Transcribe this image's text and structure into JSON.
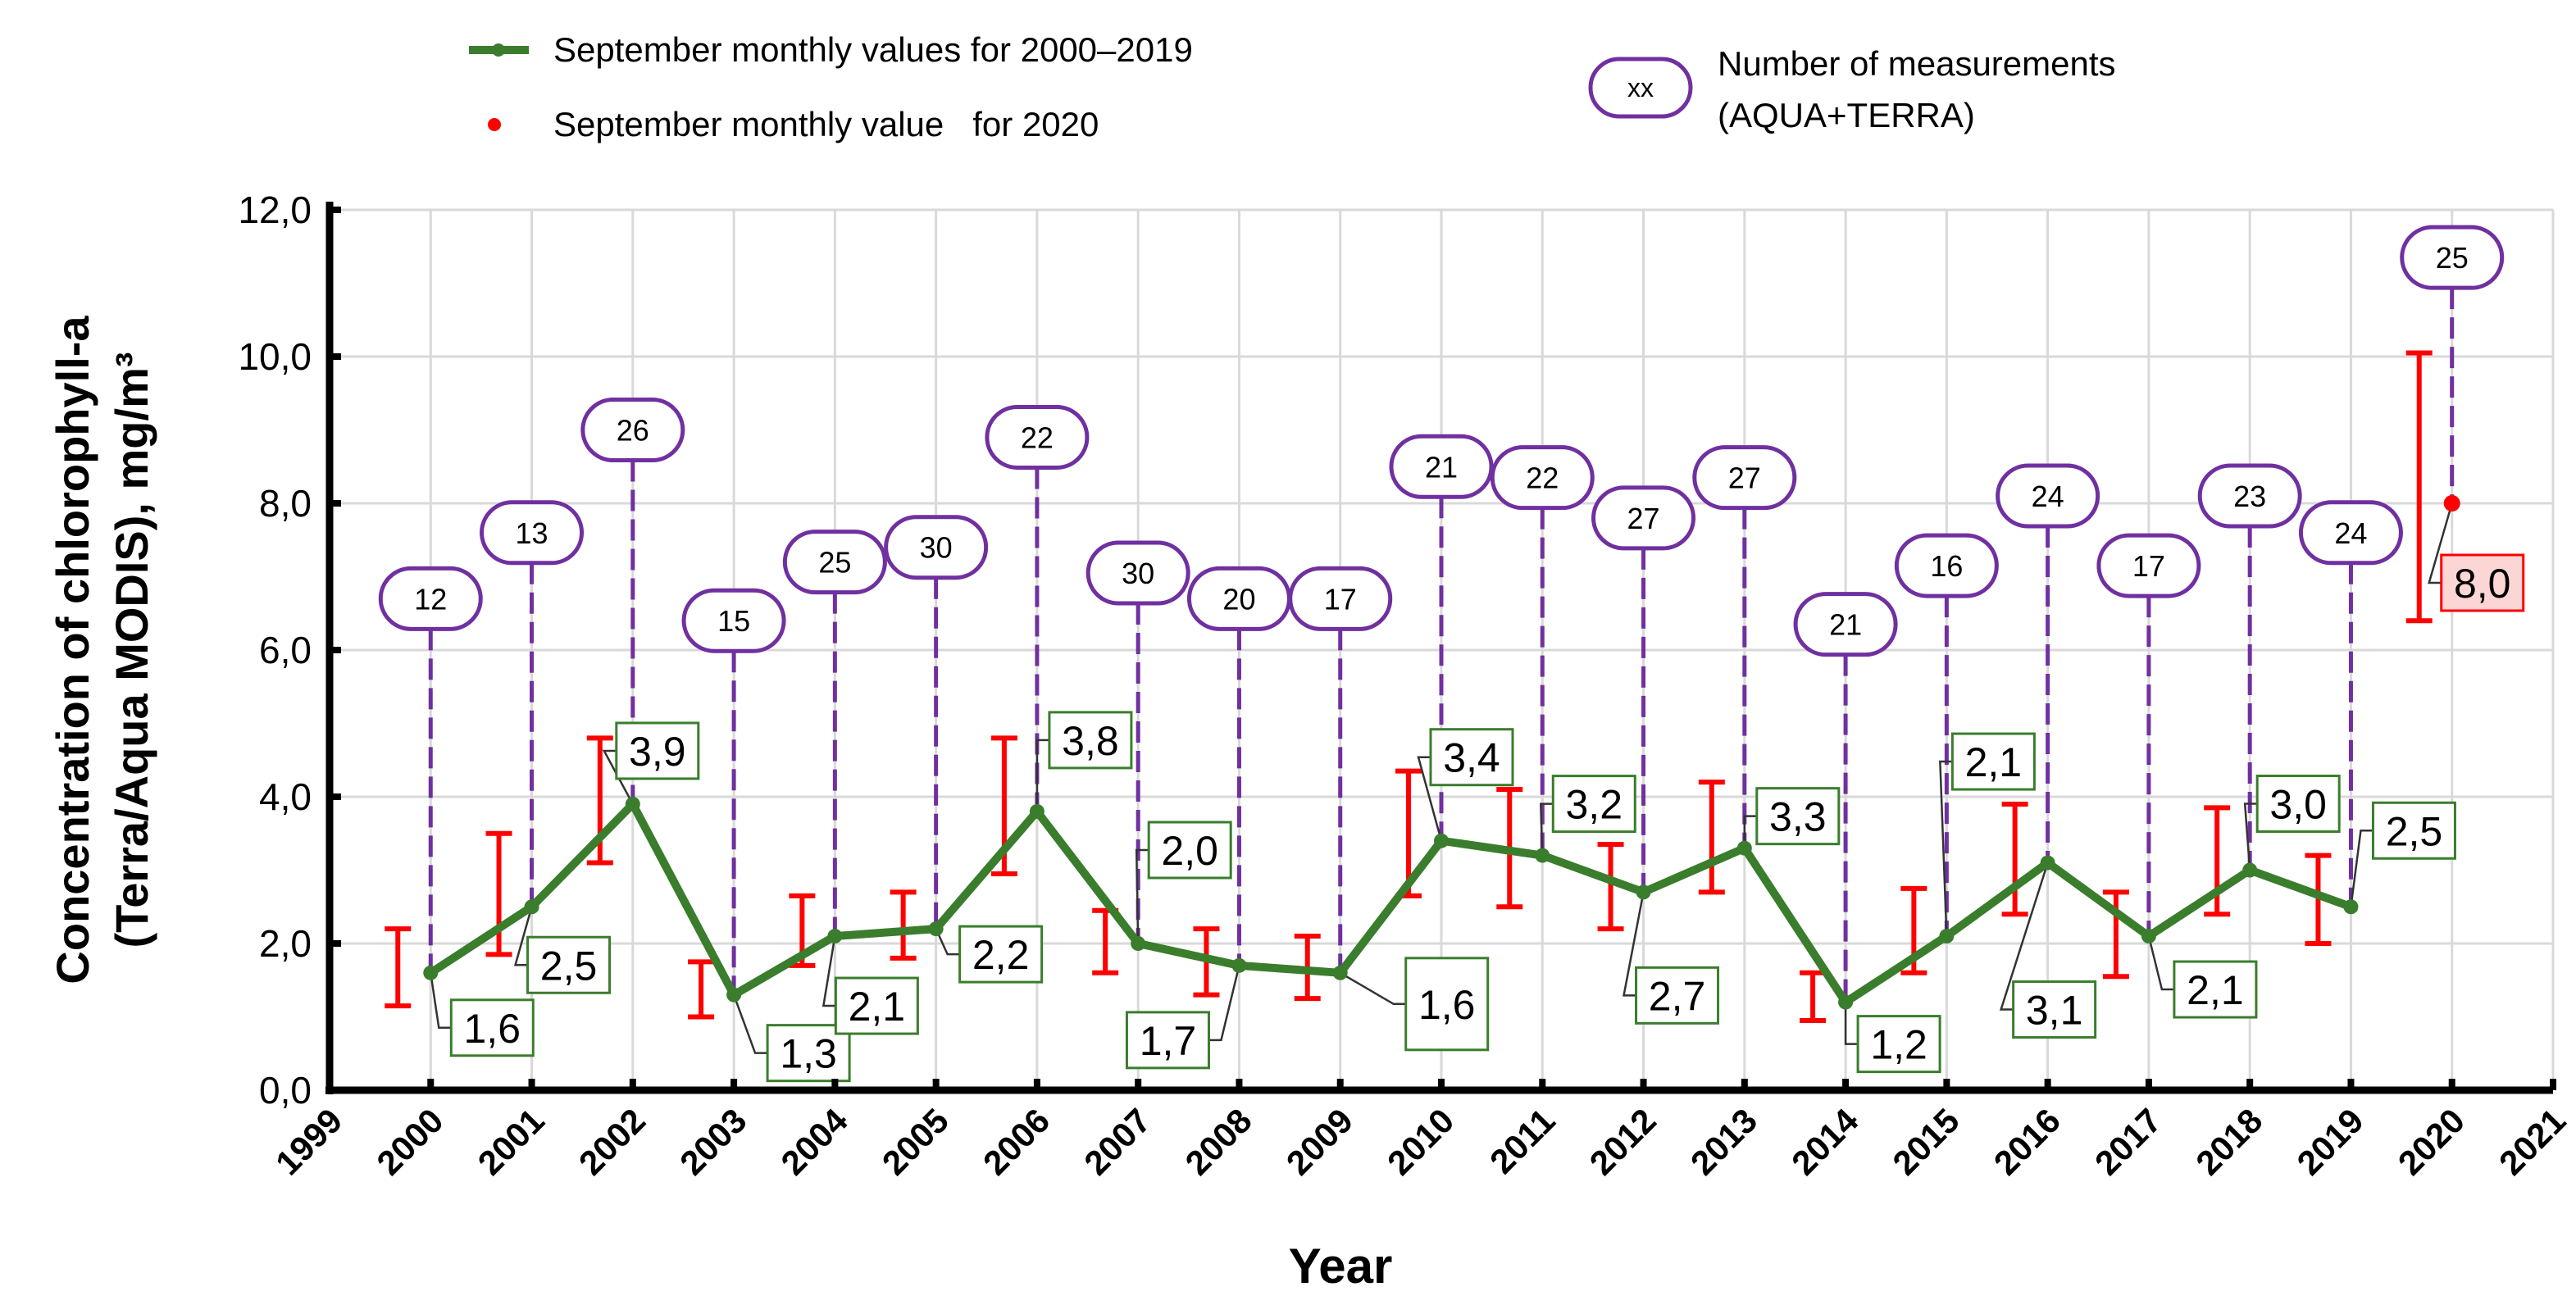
{
  "chart_data": {
    "type": "line",
    "title": "",
    "xlabel": "Year",
    "ylabel_lines": [
      "Concentration of chlorophyll-a",
      "(Terra/Aqua MODIS), mg/m³"
    ],
    "xlim": [
      1999,
      2021
    ],
    "ylim": [
      0,
      12
    ],
    "grid": true,
    "x_ticks": [
      "1999",
      "2000",
      "2001",
      "2002",
      "2003",
      "2004",
      "2005",
      "2006",
      "2007",
      "2008",
      "2009",
      "2010",
      "2011",
      "2012",
      "2013",
      "2014",
      "2015",
      "2016",
      "2017",
      "2018",
      "2019",
      "2020",
      "2021"
    ],
    "y_ticks": [
      "0,0",
      "2,0",
      "4,0",
      "6,0",
      "8,0",
      "10,0",
      "12,0"
    ],
    "legend": {
      "placement": "top",
      "series_label": "September monthly values for 2000–2019",
      "point_label": "September monthly value   for 2020",
      "bubble_sample": "xx",
      "bubble_label_lines": [
        "Number of measurements",
        "(AQUA+TERRA)"
      ]
    },
    "series": [
      {
        "name": "September monthly values for 2000–2019",
        "color": "#3a7d2c",
        "x": [
          2000,
          2001,
          2002,
          2003,
          2004,
          2005,
          2006,
          2007,
          2008,
          2009,
          2010,
          2011,
          2012,
          2013,
          2014,
          2015,
          2016,
          2017,
          2018,
          2019
        ],
        "values": [
          1.6,
          2.5,
          3.9,
          1.3,
          2.1,
          2.2,
          3.8,
          2.0,
          1.7,
          1.6,
          3.4,
          3.2,
          2.7,
          3.3,
          1.2,
          2.1,
          3.1,
          2.1,
          3.0,
          2.5
        ],
        "labels": [
          "1,6",
          "2,5",
          "3,9",
          "1,3",
          "2,1",
          "2,2",
          "3,8",
          "2,0",
          "1,7",
          "1,6",
          "3,4",
          "3,2",
          "2,7",
          "3,3",
          "1,2",
          "2,1",
          "3,1",
          "2,1",
          "3,0",
          "2,5"
        ],
        "error_low": [
          1.15,
          1.85,
          3.1,
          1.0,
          1.7,
          1.8,
          2.95,
          1.6,
          1.3,
          1.25,
          2.65,
          2.5,
          2.2,
          2.7,
          0.95,
          1.6,
          2.4,
          1.55,
          2.4,
          2.0
        ],
        "error_high": [
          2.2,
          3.5,
          4.8,
          1.75,
          2.65,
          2.7,
          4.8,
          2.45,
          2.2,
          2.1,
          4.35,
          4.1,
          3.35,
          4.2,
          1.6,
          2.75,
          3.9,
          2.7,
          3.85,
          3.2
        ],
        "measurements": [
          "12",
          "13",
          "26",
          "15",
          "25",
          "30",
          "22",
          "30",
          "20",
          "17",
          "21",
          "22",
          "27",
          "27",
          "21",
          "16",
          "24",
          "17",
          "23",
          "24"
        ]
      },
      {
        "name": "September monthly value for 2020",
        "color": "#ff0000",
        "x": [
          2020
        ],
        "values": [
          8.0
        ],
        "labels": [
          "8,0"
        ],
        "error_low": [
          6.4
        ],
        "error_high": [
          10.05
        ],
        "measurements": [
          "25"
        ]
      }
    ],
    "colors": {
      "line": "#3a7d2c",
      "error": "#ff0000",
      "bubble": "#7030a0",
      "grid": "#d9d9d9",
      "highlight_fill": "#fcd5d5"
    }
  }
}
